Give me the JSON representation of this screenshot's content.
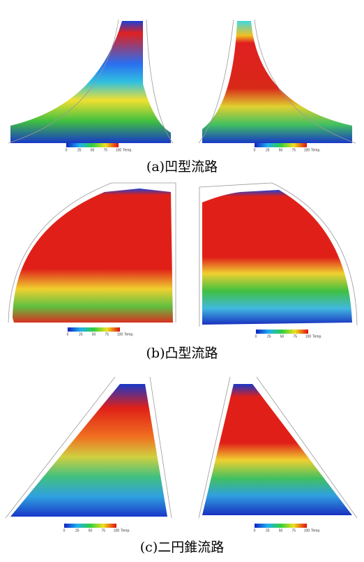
{
  "captions": [
    "(a)凹型流路",
    "(b)凸型流路",
    "(c)二円錐流路"
  ],
  "colorbar": {
    "ticks": [
      0,
      25,
      50,
      75,
      100
    ],
    "label": "Temp."
  }
}
